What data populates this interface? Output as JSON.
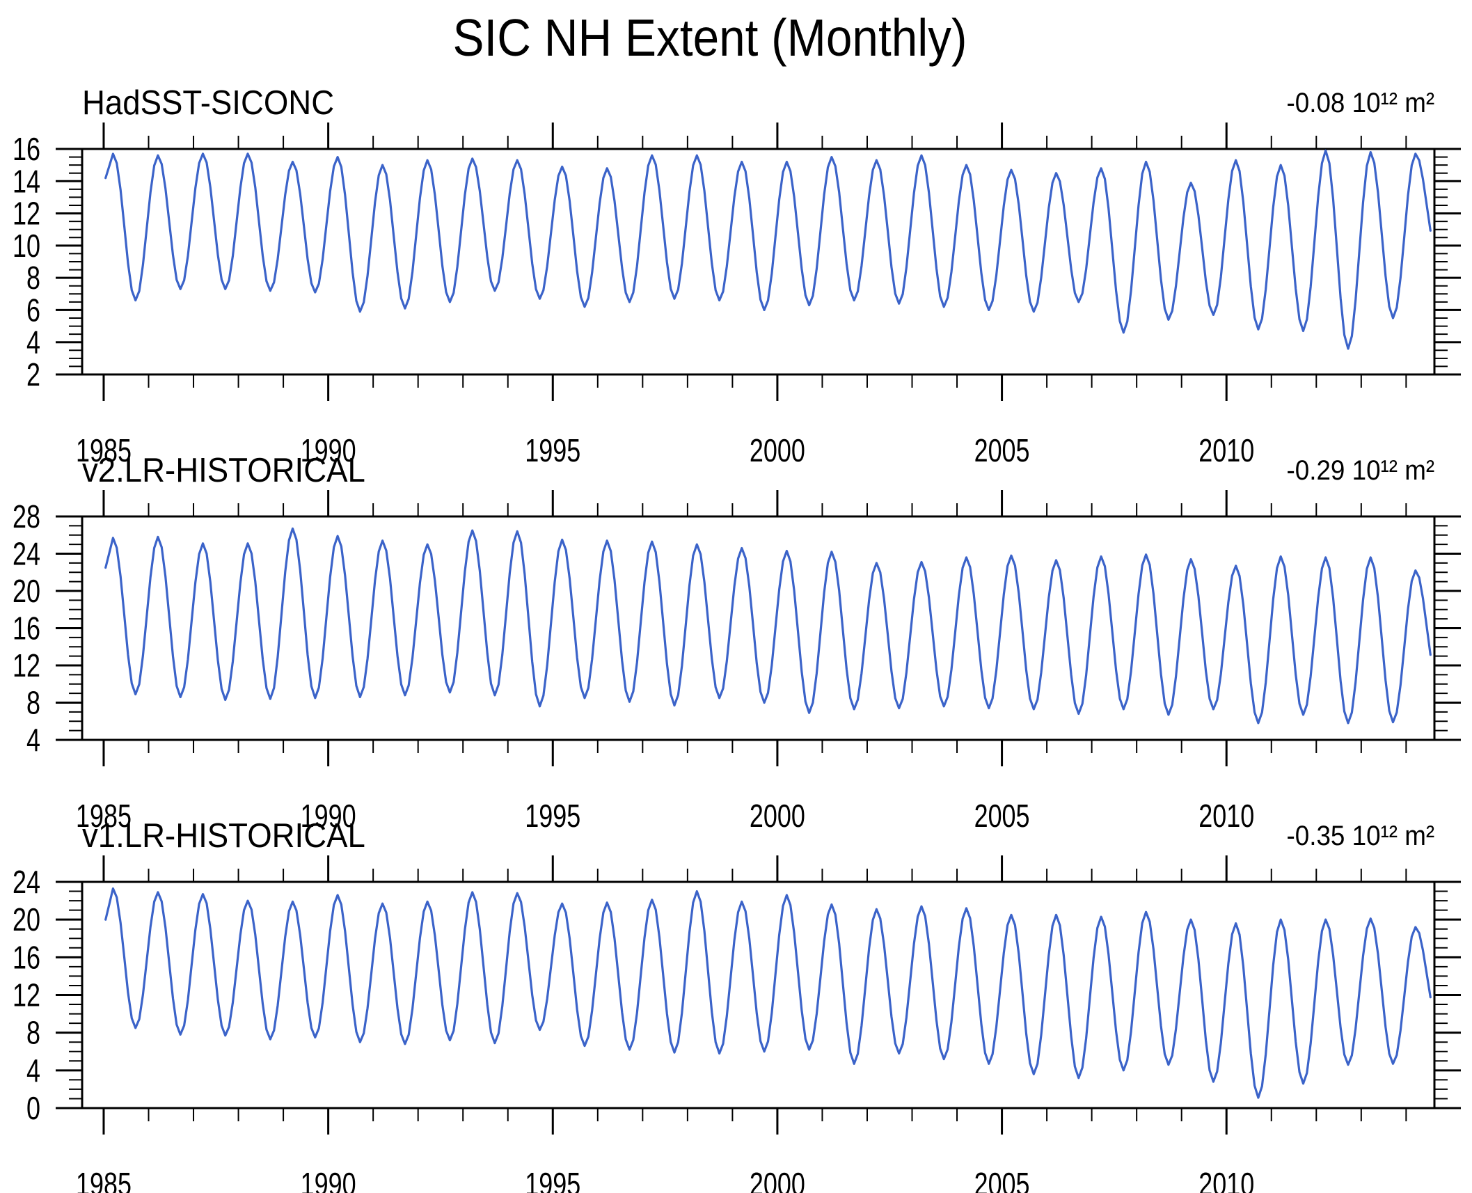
{
  "title": "SIC NH Extent (Monthly)",
  "line_color": "#3B63C9",
  "axis_color": "#000000",
  "x_axis": {
    "range": [
      1984.52,
      2014.63
    ],
    "major_tick_years": [
      1985,
      1990,
      1995,
      2000,
      2005,
      2010
    ],
    "major_tick_labels": [
      "1985",
      "1990",
      "1995",
      "2000",
      "2005",
      "2010"
    ],
    "minor_tick_interval_years": 1
  },
  "chart_data": [
    {
      "type": "line",
      "label": "HadSST-SICONC",
      "trend_label": "-0.08 10¹² m²",
      "y_axis": {
        "min": 2,
        "max": 16,
        "tick_values": [
          16,
          14,
          12,
          10,
          8,
          6,
          4,
          2
        ],
        "tick_labels": [
          "16",
          "14",
          "12",
          "10",
          "8",
          "6",
          "4",
          "2"
        ],
        "minor_step": 0.5
      },
      "series": {
        "description": "Monthly NH sea-ice extent, seasonal cycle; annual March maxima and September minima, 10^12 m2",
        "start_year_value": 14.2,
        "years": [
          1985,
          1986,
          1987,
          1988,
          1989,
          1990,
          1991,
          1992,
          1993,
          1994,
          1995,
          1996,
          1997,
          1998,
          1999,
          2000,
          2001,
          2002,
          2003,
          2004,
          2005,
          2006,
          2007,
          2008,
          2009,
          2010,
          2011,
          2012,
          2013,
          2014
        ],
        "march_peaks": [
          15.7,
          15.6,
          15.7,
          15.7,
          15.2,
          15.5,
          15.0,
          15.3,
          15.4,
          15.3,
          14.9,
          14.8,
          15.6,
          15.6,
          15.2,
          15.2,
          15.5,
          15.3,
          15.6,
          15.0,
          14.7,
          14.5,
          14.8,
          15.2,
          13.9,
          15.3,
          15.0,
          15.9,
          15.8,
          15.7
        ],
        "september_troughs": [
          6.6,
          7.3,
          7.3,
          7.2,
          7.1,
          5.9,
          6.1,
          6.5,
          7.2,
          6.7,
          6.2,
          6.5,
          6.7,
          6.6,
          6.0,
          6.3,
          6.6,
          6.4,
          6.2,
          6.0,
          5.9,
          6.5,
          4.6,
          5.4,
          5.7,
          4.8,
          4.7,
          3.6,
          5.5
        ],
        "end_year": 2014.62,
        "end_value": 9.8
      }
    },
    {
      "type": "line",
      "label": "v2.LR-HISTORICAL",
      "trend_label": "-0.29 10¹² m²",
      "y_axis": {
        "min": 4,
        "max": 28,
        "tick_values": [
          28,
          24,
          20,
          16,
          12,
          8,
          4
        ],
        "tick_labels": [
          "28",
          "24",
          "20",
          "16",
          "12",
          "8",
          "4"
        ],
        "minor_step": 1
      },
      "series": {
        "description": "Monthly NH sea-ice extent, seasonal cycle; annual March maxima and September minima, 10^12 m2",
        "start_year_value": 22.5,
        "years": [
          1985,
          1986,
          1987,
          1988,
          1989,
          1990,
          1991,
          1992,
          1993,
          1994,
          1995,
          1996,
          1997,
          1998,
          1999,
          2000,
          2001,
          2002,
          2003,
          2004,
          2005,
          2006,
          2007,
          2008,
          2009,
          2010,
          2011,
          2012,
          2013,
          2014
        ],
        "march_peaks": [
          25.7,
          25.8,
          25.1,
          25.1,
          26.7,
          25.9,
          25.4,
          25.0,
          26.5,
          26.4,
          25.5,
          25.4,
          25.3,
          25.0,
          24.6,
          24.3,
          24.2,
          23.0,
          23.1,
          23.6,
          23.8,
          23.3,
          23.7,
          23.9,
          23.4,
          22.7,
          23.7,
          23.6,
          23.6,
          22.2
        ],
        "september_troughs": [
          8.9,
          8.6,
          8.3,
          8.4,
          8.5,
          8.6,
          8.8,
          9.1,
          8.8,
          7.6,
          8.5,
          8.1,
          7.7,
          8.5,
          8.0,
          6.9,
          7.3,
          7.4,
          7.6,
          7.4,
          7.3,
          6.8,
          7.3,
          6.7,
          7.3,
          5.8,
          6.7,
          5.8,
          5.9
        ],
        "end_year": 2014.62,
        "end_value": 11.0
      }
    },
    {
      "type": "line",
      "label": "v1.LR-HISTORICAL",
      "trend_label": "-0.35 10¹² m²",
      "y_axis": {
        "min": 0,
        "max": 24,
        "tick_values": [
          24,
          20,
          16,
          12,
          8,
          4,
          0
        ],
        "tick_labels": [
          "24",
          "20",
          "16",
          "12",
          "8",
          "4",
          "0"
        ],
        "minor_step": 1
      },
      "series": {
        "description": "Monthly NH sea-ice extent, seasonal cycle; annual March maxima and September minima, 10^12 m2",
        "start_year_value": 20.0,
        "years": [
          1985,
          1986,
          1987,
          1988,
          1989,
          1990,
          1991,
          1992,
          1993,
          1994,
          1995,
          1996,
          1997,
          1998,
          1999,
          2000,
          2001,
          2002,
          2003,
          2004,
          2005,
          2006,
          2007,
          2008,
          2009,
          2010,
          2011,
          2012,
          2013,
          2014
        ],
        "march_peaks": [
          23.3,
          22.9,
          22.7,
          22.0,
          21.9,
          22.6,
          21.7,
          21.9,
          22.9,
          22.8,
          21.7,
          21.8,
          22.1,
          23.0,
          21.9,
          22.6,
          21.6,
          21.1,
          21.4,
          21.2,
          20.5,
          20.5,
          20.3,
          20.8,
          20.0,
          19.6,
          20.0,
          20.0,
          20.1,
          19.2
        ],
        "september_troughs": [
          8.5,
          7.8,
          7.7,
          7.3,
          7.5,
          7.0,
          6.8,
          7.2,
          6.9,
          8.3,
          6.6,
          6.2,
          5.9,
          5.8,
          6.0,
          6.2,
          4.7,
          5.8,
          5.2,
          4.7,
          3.6,
          3.2,
          4.0,
          4.6,
          2.8,
          1.1,
          2.6,
          4.6,
          4.7
        ],
        "end_year": 2014.62,
        "end_value": 10.0
      }
    }
  ]
}
